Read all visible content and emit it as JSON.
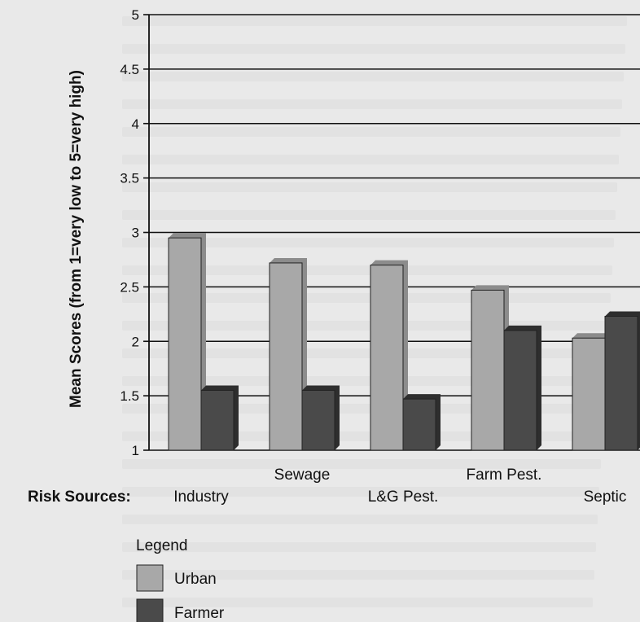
{
  "chart_data": {
    "type": "bar",
    "ylabel": "Mean Scores (from 1=very low to 5=very high)",
    "category_axis_title": "Risk Sources:",
    "categories": [
      "Industry",
      "Sewage",
      "L&G Pest.",
      "Farm Pest.",
      "Septic"
    ],
    "ylim": [
      1,
      5
    ],
    "yticks": [
      "1",
      "1.5",
      "2",
      "2.5",
      "3",
      "3.5",
      "4",
      "4.5",
      "5"
    ],
    "grid": true,
    "legend_title": "Legend",
    "legend_placement": "bottom-left",
    "series": [
      {
        "name": "Urban",
        "color": "#a8a8a8",
        "values": [
          2.95,
          2.72,
          2.7,
          2.47,
          2.03
        ]
      },
      {
        "name": "Farmer",
        "color": "#4a4a4a",
        "values": [
          1.55,
          1.55,
          1.47,
          2.1,
          2.23
        ]
      }
    ]
  }
}
